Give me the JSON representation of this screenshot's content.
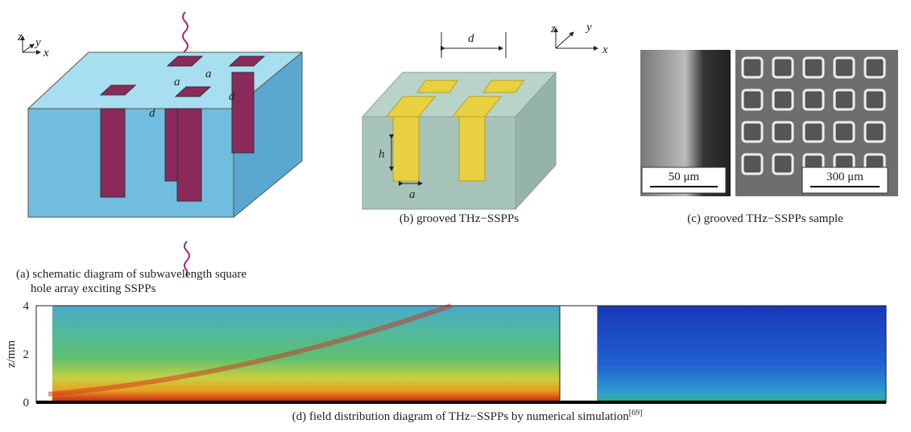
{
  "panel_a": {
    "axes": {
      "z": "z",
      "y": "y",
      "x": "x"
    },
    "labels": {
      "a1": "a",
      "a2": "a",
      "d1": "d",
      "d2": "d"
    },
    "caption": [
      "(a) schematic diagram of subwavelength square",
      "hole array exciting SSPPs"
    ]
  },
  "panel_b": {
    "axes": {
      "z": "z",
      "y": "y",
      "x": "x"
    },
    "labels": {
      "d": "d",
      "h": "h",
      "a": "a"
    },
    "caption": "(b) grooved THz−SSPPs"
  },
  "panel_c": {
    "scale_left": "50 μm",
    "scale_right": "300 μm",
    "caption": "(c) grooved THz−SSPPs sample"
  },
  "panel_d": {
    "axis_label": "z/mm",
    "ticks": [
      "4",
      "2",
      "0"
    ],
    "caption": "(d) field distribution diagram of THz−SSPPs by numerical simulation",
    "citation": "[69]"
  }
}
